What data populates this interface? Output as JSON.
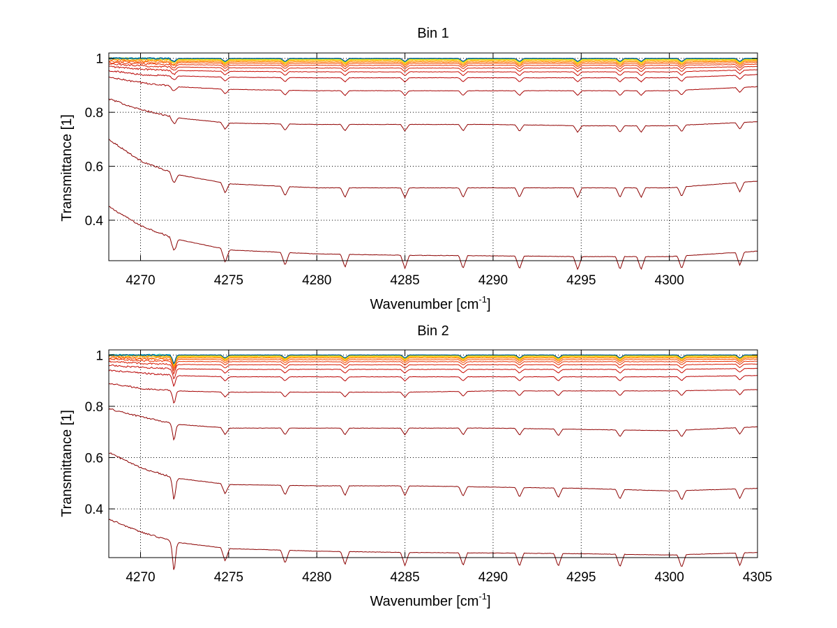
{
  "figure": {
    "background": "#ffffff"
  },
  "chart_data": [
    {
      "type": "line",
      "title": "Bin 1",
      "xlabel": "Wavenumber [cm",
      "xlabel_sup": "-1",
      "xlabel_suffix": "]",
      "ylabel": "Transmittance [1]",
      "xlim": [
        4268.2,
        4305
      ],
      "ylim": [
        0.25,
        1.02
      ],
      "xticks": [
        4270,
        4275,
        4280,
        4285,
        4290,
        4295,
        4300
      ],
      "xtick_labels": [
        "4270",
        "4275",
        "4280",
        "4285",
        "4290",
        "4295",
        "4300"
      ],
      "yticks": [
        0.4,
        0.6,
        0.8,
        1.0
      ],
      "ytick_labels": [
        "0.4",
        "0.6",
        "0.8",
        "1"
      ],
      "grid": "dotted",
      "absorption_lines": [
        4271.9,
        4274.8,
        4278.2,
        4281.6,
        4285.0,
        4288.3,
        4291.5,
        4294.8,
        4297.2,
        4298.4,
        4300.7,
        4304.0
      ],
      "lines_sample_x": [
        4268.2,
        4270,
        4272,
        4275,
        4280,
        4285,
        4290,
        4295,
        4300,
        4305
      ],
      "series": [
        {
          "color": "#8b0000",
          "values": [
            0.45,
            0.38,
            0.33,
            0.29,
            0.275,
            0.27,
            0.268,
            0.265,
            0.265,
            0.285
          ]
        },
        {
          "color": "#8b0000",
          "values": [
            0.7,
            0.62,
            0.57,
            0.535,
            0.52,
            0.52,
            0.52,
            0.52,
            0.52,
            0.545
          ]
        },
        {
          "color": "#900000",
          "values": [
            0.85,
            0.81,
            0.78,
            0.76,
            0.755,
            0.755,
            0.755,
            0.75,
            0.75,
            0.765
          ]
        },
        {
          "color": "#a50000",
          "values": [
            0.93,
            0.91,
            0.895,
            0.885,
            0.88,
            0.88,
            0.88,
            0.88,
            0.88,
            0.895
          ]
        },
        {
          "color": "#b80000",
          "values": [
            0.955,
            0.94,
            0.935,
            0.93,
            0.928,
            0.928,
            0.928,
            0.928,
            0.928,
            0.94
          ]
        },
        {
          "color": "#c80a00",
          "values": [
            0.97,
            0.96,
            0.955,
            0.952,
            0.95,
            0.95,
            0.95,
            0.95,
            0.95,
            0.958
          ]
        },
        {
          "color": "#d81a00",
          "values": [
            0.98,
            0.972,
            0.968,
            0.965,
            0.964,
            0.964,
            0.964,
            0.964,
            0.964,
            0.97
          ]
        },
        {
          "color": "#e83000",
          "values": [
            0.985,
            0.98,
            0.977,
            0.975,
            0.974,
            0.974,
            0.974,
            0.974,
            0.974,
            0.978
          ]
        },
        {
          "color": "#f55000",
          "values": [
            0.99,
            0.986,
            0.984,
            0.982,
            0.981,
            0.981,
            0.981,
            0.981,
            0.981,
            0.984
          ]
        },
        {
          "color": "#ff7a00",
          "values": [
            0.995,
            0.99,
            0.988,
            0.987,
            0.986,
            0.986,
            0.986,
            0.986,
            0.986,
            0.989
          ]
        },
        {
          "color": "#ffa000",
          "values": [
            0.998,
            0.994,
            0.992,
            0.991,
            0.99,
            0.99,
            0.99,
            0.99,
            0.99,
            0.992
          ]
        },
        {
          "color": "#ffc800",
          "values": [
            1.0,
            0.997,
            0.995,
            0.994,
            0.994,
            0.994,
            0.994,
            0.994,
            0.994,
            0.995
          ]
        },
        {
          "color": "#f0e000",
          "values": [
            1.0,
            0.999,
            0.997,
            0.996,
            0.996,
            0.996,
            0.996,
            0.996,
            0.996,
            0.997
          ]
        },
        {
          "color": "#b0e040",
          "values": [
            1.0,
            1.0,
            0.998,
            0.998,
            0.998,
            0.998,
            0.998,
            0.998,
            0.998,
            0.998
          ]
        },
        {
          "color": "#50d0a0",
          "values": [
            1.0,
            1.0,
            0.999,
            0.999,
            0.999,
            0.999,
            0.999,
            0.999,
            0.999,
            0.999
          ]
        },
        {
          "color": "#00b0e0",
          "values": [
            1.0,
            1.0,
            1.0,
            1.0,
            1.0,
            1.0,
            1.0,
            1.0,
            1.0,
            1.0
          ]
        },
        {
          "color": "#003f7f",
          "values": [
            1.0,
            1.0,
            1.0,
            1.0,
            1.0,
            1.0,
            1.0,
            1.0,
            1.0,
            1.0
          ]
        }
      ]
    },
    {
      "type": "line",
      "title": "Bin 2",
      "xlabel": "Wavenumber [cm",
      "xlabel_sup": "-1",
      "xlabel_suffix": "]",
      "ylabel": "Transmittance [1]",
      "xlim": [
        4268.2,
        4305
      ],
      "ylim": [
        0.21,
        1.02
      ],
      "xticks": [
        4270,
        4275,
        4280,
        4285,
        4290,
        4295,
        4300,
        4305
      ],
      "xtick_labels": [
        "4270",
        "4275",
        "4280",
        "4285",
        "4290",
        "4295",
        "4300",
        "4305"
      ],
      "yticks": [
        0.4,
        0.6,
        0.8,
        1.0
      ],
      "ytick_labels": [
        "0.4",
        "0.6",
        "0.8",
        "1"
      ],
      "grid": "dotted",
      "absorption_lines": [
        4271.9,
        4274.8,
        4278.2,
        4281.6,
        4285.0,
        4288.3,
        4291.5,
        4293.7,
        4297.2,
        4300.7,
        4304.0
      ],
      "lines_sample_x": [
        4268.2,
        4270,
        4272,
        4275,
        4280,
        4285,
        4290,
        4295,
        4300,
        4305
      ],
      "series": [
        {
          "color": "#8b0000",
          "values": [
            0.36,
            0.31,
            0.27,
            0.245,
            0.235,
            0.23,
            0.228,
            0.225,
            0.22,
            0.23
          ]
        },
        {
          "color": "#8b0000",
          "values": [
            0.62,
            0.56,
            0.52,
            0.495,
            0.49,
            0.49,
            0.485,
            0.48,
            0.47,
            0.48
          ]
        },
        {
          "color": "#900000",
          "values": [
            0.79,
            0.76,
            0.73,
            0.715,
            0.715,
            0.715,
            0.715,
            0.71,
            0.705,
            0.72
          ]
        },
        {
          "color": "#a50000",
          "values": [
            0.89,
            0.87,
            0.86,
            0.855,
            0.855,
            0.855,
            0.86,
            0.86,
            0.86,
            0.865
          ]
        },
        {
          "color": "#b80000",
          "values": [
            0.94,
            0.93,
            0.92,
            0.915,
            0.915,
            0.915,
            0.915,
            0.915,
            0.915,
            0.92
          ]
        },
        {
          "color": "#c80a00",
          "values": [
            0.96,
            0.952,
            0.946,
            0.944,
            0.944,
            0.944,
            0.944,
            0.944,
            0.944,
            0.948
          ]
        },
        {
          "color": "#d81a00",
          "values": [
            0.975,
            0.968,
            0.963,
            0.962,
            0.962,
            0.962,
            0.962,
            0.962,
            0.962,
            0.965
          ]
        },
        {
          "color": "#e83000",
          "values": [
            0.985,
            0.978,
            0.975,
            0.974,
            0.974,
            0.974,
            0.974,
            0.974,
            0.974,
            0.976
          ]
        },
        {
          "color": "#f55000",
          "values": [
            0.99,
            0.985,
            0.983,
            0.982,
            0.982,
            0.982,
            0.982,
            0.982,
            0.982,
            0.984
          ]
        },
        {
          "color": "#ff7a00",
          "values": [
            0.995,
            0.99,
            0.988,
            0.988,
            0.988,
            0.988,
            0.988,
            0.988,
            0.988,
            0.989
          ]
        },
        {
          "color": "#ffa000",
          "values": [
            0.998,
            0.994,
            0.992,
            0.992,
            0.992,
            0.992,
            0.992,
            0.992,
            0.992,
            0.993
          ]
        },
        {
          "color": "#ffc800",
          "values": [
            1.0,
            0.997,
            0.995,
            0.995,
            0.995,
            0.995,
            0.995,
            0.995,
            0.995,
            0.996
          ]
        },
        {
          "color": "#f0e000",
          "values": [
            1.0,
            0.999,
            0.997,
            0.997,
            0.997,
            0.997,
            0.997,
            0.997,
            0.997,
            0.998
          ]
        },
        {
          "color": "#b0e040",
          "values": [
            1.0,
            1.0,
            0.999,
            0.999,
            0.999,
            0.999,
            0.999,
            0.999,
            0.999,
            0.999
          ]
        },
        {
          "color": "#50d0a0",
          "values": [
            1.0,
            1.0,
            1.0,
            1.0,
            1.0,
            1.0,
            1.0,
            1.0,
            1.0,
            1.0
          ]
        },
        {
          "color": "#00b0e0",
          "values": [
            1.0,
            1.0,
            1.0,
            1.0,
            1.0,
            1.0,
            1.0,
            1.0,
            1.0,
            1.0
          ]
        },
        {
          "color": "#003f7f",
          "values": [
            1.0,
            1.0,
            1.0,
            1.0,
            1.0,
            1.0,
            1.0,
            1.0,
            1.0,
            1.0
          ]
        }
      ]
    }
  ]
}
